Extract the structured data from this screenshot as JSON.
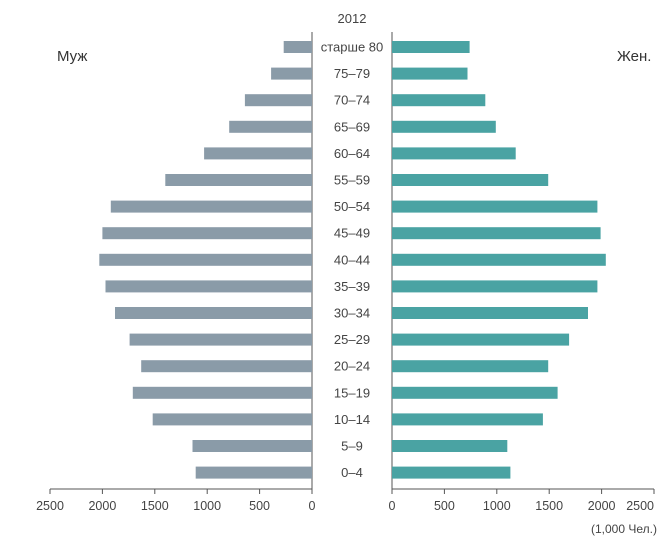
{
  "chart_data": {
    "type": "bar",
    "layout": "population-pyramid",
    "year_label": "2012",
    "unit_label": "(1,000 Чел.)",
    "categories": [
      "0–4",
      "5–9",
      "10–14",
      "15–19",
      "20–24",
      "25–29",
      "30–34",
      "35–39",
      "40–44",
      "45–49",
      "50–54",
      "55–59",
      "60–64",
      "65–69",
      "70–74",
      "75–79",
      "старше 80"
    ],
    "series": [
      {
        "name": "Муж",
        "side": "left",
        "color": "#8a9ba8",
        "values": [
          1110,
          1140,
          1520,
          1710,
          1630,
          1740,
          1880,
          1970,
          2030,
          2000,
          1920,
          1400,
          1030,
          790,
          640,
          390,
          270
        ]
      },
      {
        "name": "Жен.",
        "side": "right",
        "color": "#4aa3a3",
        "values": [
          1130,
          1100,
          1440,
          1580,
          1490,
          1690,
          1870,
          1960,
          2040,
          1990,
          1960,
          1490,
          1180,
          990,
          890,
          720,
          740
        ]
      }
    ],
    "xlim": [
      0,
      2500
    ],
    "xticks": [
      "2500",
      "2000",
      "1500",
      "1000",
      "500",
      "0"
    ],
    "xticks_right": [
      "0",
      "500",
      "1000",
      "1500",
      "2000",
      "2500"
    ],
    "grid": false,
    "legend": "top-corners"
  }
}
